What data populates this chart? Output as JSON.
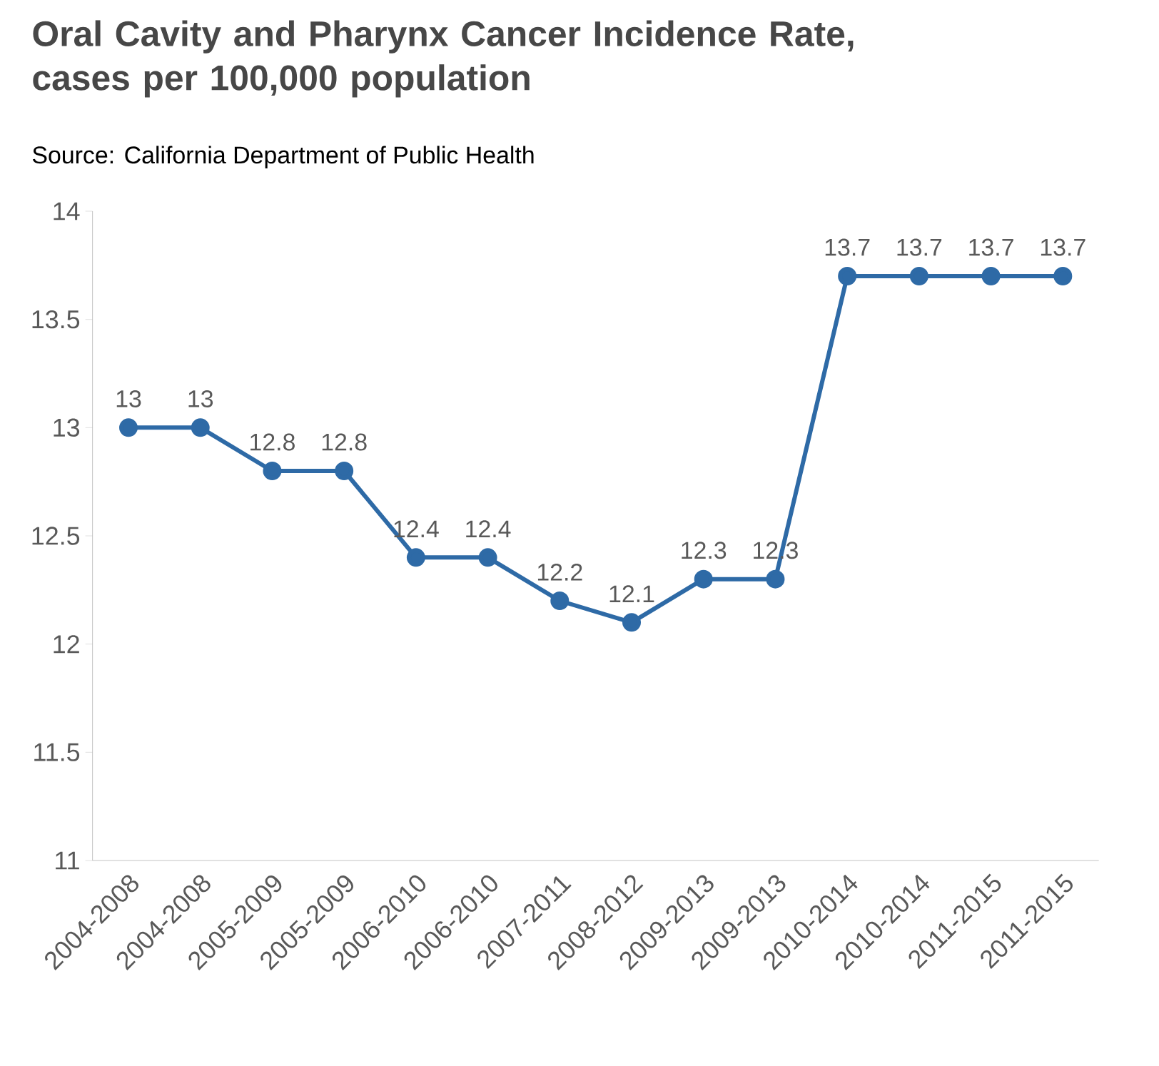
{
  "chart_data": {
    "type": "line",
    "title": "Oral Cavity and Pharynx Cancer Incidence Rate, cases per 100,000 population",
    "subtitle": "Source: California Department of Public Health",
    "categories": [
      "2004-2008",
      "2004-2008",
      "2005-2009",
      "2005-2009",
      "2006-2010",
      "2006-2010",
      "2007-2011",
      "2008-2012",
      "2009-2013",
      "2009-2013",
      "2010-2014",
      "2010-2014",
      "2011-2015",
      "2011-2015"
    ],
    "values": [
      13,
      13,
      12.8,
      12.8,
      12.4,
      12.4,
      12.2,
      12.1,
      12.3,
      12.3,
      13.7,
      13.7,
      13.7,
      13.7
    ],
    "color": "#2e6aa6",
    "marker": "circle",
    "line_style": "solid",
    "data_labels": true,
    "ylim": [
      11,
      14
    ],
    "yticks": [
      11,
      11.5,
      12,
      12.5,
      13,
      13.5,
      14
    ]
  }
}
